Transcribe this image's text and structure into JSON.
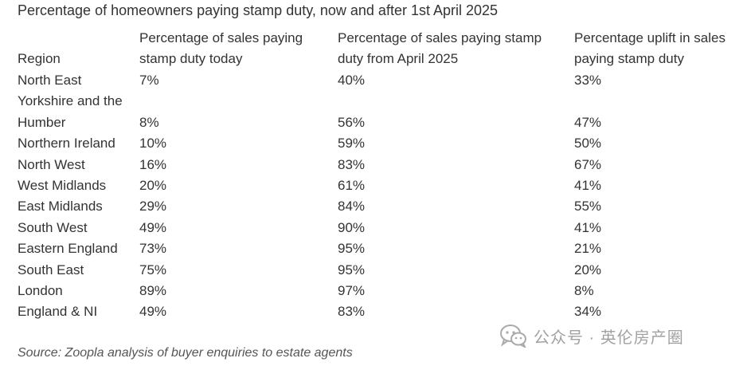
{
  "title": "Percentage of homeowners paying stamp duty, now and after 1st April 2025",
  "columns": {
    "region": "Region",
    "today": "Percentage of sales paying stamp duty today",
    "from_april": "Percentage of sales paying stamp duty from April 2025",
    "uplift": "Percentage uplift in sales paying stamp duty"
  },
  "rows": [
    {
      "region": "North East",
      "today": "7%",
      "from_april": "40%",
      "uplift": "33%"
    },
    {
      "region": "Yorkshire and the Humber",
      "today": "8%",
      "from_april": "56%",
      "uplift": "47%"
    },
    {
      "region": "Northern Ireland",
      "today": "10%",
      "from_april": "59%",
      "uplift": "50%"
    },
    {
      "region": "North West",
      "today": "16%",
      "from_april": "83%",
      "uplift": "67%"
    },
    {
      "region": "West Midlands",
      "today": "20%",
      "from_april": "61%",
      "uplift": "41%"
    },
    {
      "region": "East Midlands",
      "today": "29%",
      "from_april": "84%",
      "uplift": "55%"
    },
    {
      "region": "South West",
      "today": "49%",
      "from_april": "90%",
      "uplift": "41%"
    },
    {
      "region": "Eastern England",
      "today": "73%",
      "from_april": "95%",
      "uplift": "21%"
    },
    {
      "region": "South East",
      "today": "75%",
      "from_april": "95%",
      "uplift": "20%"
    },
    {
      "region": "London",
      "today": "89%",
      "from_april": "97%",
      "uplift": "8%"
    },
    {
      "region": "England & NI",
      "today": "49%",
      "from_april": "83%",
      "uplift": "34%"
    }
  ],
  "source": "Source: Zoopla analysis of buyer enquiries to estate agents",
  "watermark": {
    "text": "公众号 · 英伦房产圈",
    "icon": "wechat-icon"
  }
}
